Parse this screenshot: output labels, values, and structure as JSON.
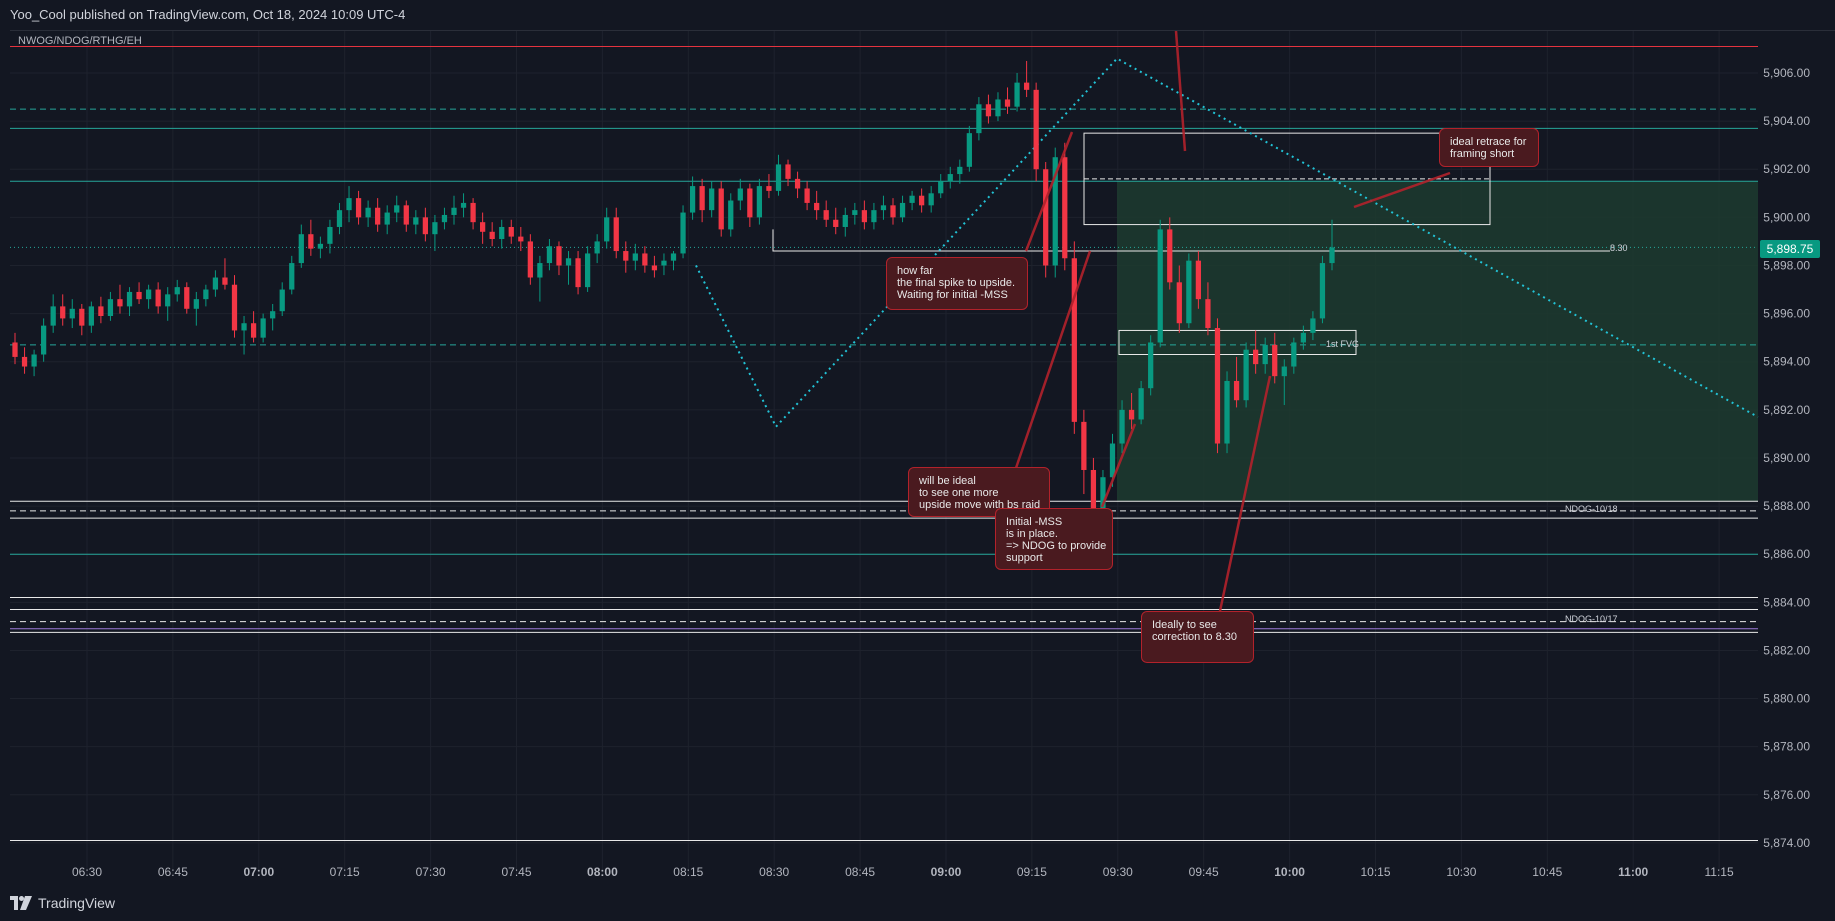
{
  "header": {
    "published": "Yoo_Cool published on TradingView.com, Oct 18, 2024 10:09 UTC-4"
  },
  "symbol": "NWOG/NDOG/RTHG/EH",
  "footer": {
    "brand": "TradingView"
  },
  "colors": {
    "bg": "#131722",
    "grid": "#1e222d",
    "up": "#089981",
    "down": "#f23645",
    "teal_line": "#26a69a",
    "cyan_dotted": "#22c3d6",
    "red_line": "#e5333f",
    "annotation_bg": "#4a1a1f",
    "annotation_border": "#b2222b",
    "zone_fill": "#1d3b2f",
    "white": "#e8e8e8",
    "purple": "#9c7ad8"
  },
  "chart_data": {
    "type": "candlestick",
    "ylim": [
      5873.5,
      5907.5
    ],
    "y_ticks": [
      "5,906.00",
      "5,904.00",
      "5,902.00",
      "5,900.00",
      "5,898.00",
      "5,896.00",
      "5,894.00",
      "5,892.00",
      "5,890.00",
      "5,888.00",
      "5,886.00",
      "5,884.00",
      "5,882.00",
      "5,880.00",
      "5,878.00",
      "5,876.00",
      "5,874.00"
    ],
    "y_tick_values": [
      5906,
      5904,
      5902,
      5900,
      5898,
      5896,
      5894,
      5892,
      5890,
      5888,
      5886,
      5884,
      5882,
      5880,
      5878,
      5876,
      5874
    ],
    "x_ticks": [
      "06:30",
      "06:45",
      "07:00",
      "07:15",
      "07:30",
      "07:45",
      "08:00",
      "08:15",
      "08:30",
      "08:45",
      "09:00",
      "09:15",
      "09:30",
      "09:45",
      "10:00",
      "10:15",
      "10:30",
      "10:45",
      "11:00",
      "11:15"
    ],
    "x_ticks_bold": [
      "07:00",
      "08:00",
      "09:00",
      "10:00",
      "11:00"
    ],
    "last_price": "5,898.75",
    "level_lines": [
      {
        "price": 5907.1,
        "color": "red",
        "style": "solid"
      },
      {
        "price": 5904.5,
        "color": "teal",
        "style": "dashed"
      },
      {
        "price": 5903.7,
        "color": "teal",
        "style": "solid"
      },
      {
        "price": 5901.5,
        "color": "teal",
        "style": "solid"
      },
      {
        "price": 5898.75,
        "color": "teal",
        "style": "dotted"
      },
      {
        "price": 5894.7,
        "color": "teal",
        "style": "dashed"
      },
      {
        "price": 5888.2,
        "color": "white",
        "style": "solid"
      },
      {
        "price": 5887.8,
        "color": "white",
        "style": "dashed"
      },
      {
        "price": 5887.5,
        "color": "white",
        "style": "solid"
      },
      {
        "price": 5886.0,
        "color": "teal",
        "style": "solid"
      },
      {
        "price": 5884.2,
        "color": "white",
        "style": "solid"
      },
      {
        "price": 5883.7,
        "color": "white",
        "style": "solid"
      },
      {
        "price": 5883.2,
        "color": "white",
        "style": "dashed"
      },
      {
        "price": 5882.9,
        "color": "purple",
        "style": "solid"
      },
      {
        "price": 5882.75,
        "color": "white",
        "style": "solid"
      },
      {
        "price": 5874.1,
        "color": "white",
        "style": "solid"
      }
    ],
    "level_labels": [
      {
        "text": "8.30",
        "price": 5898.7
      },
      {
        "text": "NDOG-10/18",
        "price": 5887.8
      },
      {
        "text": "NDOG-10/17",
        "price": 5883.2
      },
      {
        "text": "1st FVG",
        "price": 5894.75
      }
    ],
    "annotations": [
      {
        "text": "how far\nthe final spike to upside.\nWaiting for initial -MSS"
      },
      {
        "text": "will be ideal\nto see one more\nupside move with bs raid"
      },
      {
        "text": "Initial -MSS\nis in place.\n=> NDOG to provide\nsupport"
      },
      {
        "text": "Ideally to see\ncorrection to 8.30"
      },
      {
        "text": "ideal retrace for\nframing short"
      }
    ],
    "candles_ohlc": [
      [
        5894.8,
        5895.2,
        5893.9,
        5894.2
      ],
      [
        5894.2,
        5894.6,
        5893.5,
        5893.8
      ],
      [
        5893.8,
        5894.5,
        5893.4,
        5894.3
      ],
      [
        5894.3,
        5895.8,
        5894.0,
        5895.5
      ],
      [
        5895.5,
        5896.8,
        5895.2,
        5896.3
      ],
      [
        5896.3,
        5896.8,
        5895.5,
        5895.8
      ],
      [
        5895.8,
        5896.6,
        5895.4,
        5896.2
      ],
      [
        5896.2,
        5896.4,
        5895.1,
        5895.5
      ],
      [
        5895.5,
        5896.5,
        5895.2,
        5896.3
      ],
      [
        5896.3,
        5896.7,
        5895.6,
        5895.9
      ],
      [
        5895.9,
        5896.9,
        5895.7,
        5896.6
      ],
      [
        5896.6,
        5897.2,
        5896.0,
        5896.3
      ],
      [
        5896.3,
        5897.1,
        5895.9,
        5896.9
      ],
      [
        5896.9,
        5897.3,
        5896.4,
        5896.6
      ],
      [
        5896.6,
        5897.2,
        5896.2,
        5897.0
      ],
      [
        5897.0,
        5897.3,
        5896.0,
        5896.3
      ],
      [
        5896.3,
        5897.1,
        5895.7,
        5896.8
      ],
      [
        5896.8,
        5897.4,
        5896.5,
        5897.1
      ],
      [
        5897.1,
        5897.3,
        5896.0,
        5896.2
      ],
      [
        5896.2,
        5896.9,
        5895.5,
        5896.6
      ],
      [
        5896.6,
        5897.2,
        5896.3,
        5897.0
      ],
      [
        5897.0,
        5897.8,
        5896.7,
        5897.5
      ],
      [
        5897.5,
        5898.3,
        5897.0,
        5897.2
      ],
      [
        5897.2,
        5897.6,
        5895.0,
        5895.3
      ],
      [
        5895.3,
        5895.9,
        5894.3,
        5895.6
      ],
      [
        5895.6,
        5896.1,
        5894.8,
        5895.0
      ],
      [
        5895.0,
        5896.0,
        5894.8,
        5895.8
      ],
      [
        5895.8,
        5896.4,
        5895.3,
        5896.1
      ],
      [
        5896.1,
        5897.3,
        5895.9,
        5897.0
      ],
      [
        5897.0,
        5898.4,
        5896.8,
        5898.1
      ],
      [
        5898.1,
        5899.7,
        5897.9,
        5899.3
      ],
      [
        5899.3,
        5899.9,
        5898.4,
        5898.7
      ],
      [
        5898.7,
        5899.2,
        5898.3,
        5898.9
      ],
      [
        5898.9,
        5899.9,
        5898.5,
        5899.6
      ],
      [
        5899.6,
        5900.6,
        5899.3,
        5900.3
      ],
      [
        5900.3,
        5901.3,
        5899.8,
        5900.8
      ],
      [
        5900.8,
        5901.1,
        5899.7,
        5900.0
      ],
      [
        5900.0,
        5900.7,
        5899.6,
        5900.4
      ],
      [
        5900.4,
        5900.8,
        5899.4,
        5899.7
      ],
      [
        5899.7,
        5900.5,
        5899.3,
        5900.2
      ],
      [
        5900.2,
        5900.9,
        5899.8,
        5900.5
      ],
      [
        5900.5,
        5900.7,
        5899.4,
        5899.7
      ],
      [
        5899.7,
        5900.3,
        5899.3,
        5900.0
      ],
      [
        5900.0,
        5900.4,
        5899.0,
        5899.3
      ],
      [
        5899.3,
        5900.1,
        5898.6,
        5899.8
      ],
      [
        5899.8,
        5900.4,
        5899.5,
        5900.1
      ],
      [
        5900.1,
        5900.9,
        5899.7,
        5900.4
      ],
      [
        5900.4,
        5901.0,
        5900.0,
        5900.6
      ],
      [
        5900.6,
        5900.8,
        5899.5,
        5899.8
      ],
      [
        5899.8,
        5900.2,
        5898.9,
        5899.4
      ],
      [
        5899.4,
        5899.8,
        5898.8,
        5899.1
      ],
      [
        5899.1,
        5899.9,
        5898.7,
        5899.6
      ],
      [
        5899.6,
        5899.9,
        5898.9,
        5899.2
      ],
      [
        5899.2,
        5899.6,
        5898.6,
        5899.0
      ],
      [
        5899.0,
        5899.3,
        5897.2,
        5897.5
      ],
      [
        5897.5,
        5898.4,
        5896.5,
        5898.1
      ],
      [
        5898.1,
        5899.1,
        5897.8,
        5898.8
      ],
      [
        5898.8,
        5899.0,
        5897.6,
        5898.0
      ],
      [
        5898.0,
        5898.6,
        5897.2,
        5898.3
      ],
      [
        5898.3,
        5898.6,
        5896.8,
        5897.1
      ],
      [
        5897.1,
        5898.8,
        5896.9,
        5898.5
      ],
      [
        5898.5,
        5899.3,
        5898.1,
        5899.0
      ],
      [
        5899.0,
        5900.4,
        5898.7,
        5900.0
      ],
      [
        5900.0,
        5900.4,
        5898.3,
        5898.6
      ],
      [
        5898.6,
        5899.0,
        5897.7,
        5898.2
      ],
      [
        5898.2,
        5898.9,
        5897.8,
        5898.5
      ],
      [
        5898.5,
        5898.8,
        5897.7,
        5898.0
      ],
      [
        5898.0,
        5898.4,
        5897.5,
        5897.8
      ],
      [
        5898.0,
        5898.5,
        5897.6,
        5898.2
      ],
      [
        5898.2,
        5898.6,
        5897.8,
        5898.5
      ],
      [
        5898.5,
        5900.5,
        5898.3,
        5900.2
      ],
      [
        5900.2,
        5901.7,
        5899.9,
        5901.3
      ],
      [
        5901.3,
        5901.6,
        5899.8,
        5900.3
      ],
      [
        5900.3,
        5901.5,
        5900.0,
        5901.2
      ],
      [
        5901.2,
        5901.5,
        5899.2,
        5899.5
      ],
      [
        5899.5,
        5901.0,
        5899.2,
        5900.7
      ],
      [
        5900.7,
        5901.6,
        5900.3,
        5901.2
      ],
      [
        5901.2,
        5901.4,
        5899.6,
        5900.0
      ],
      [
        5900.0,
        5901.6,
        5899.7,
        5901.3
      ],
      [
        5901.3,
        5901.8,
        5900.8,
        5901.1
      ],
      [
        5901.1,
        5902.6,
        5900.9,
        5902.2
      ],
      [
        5902.2,
        5902.4,
        5901.3,
        5901.6
      ],
      [
        5901.6,
        5901.9,
        5900.8,
        5901.2
      ],
      [
        5901.2,
        5901.5,
        5900.3,
        5900.6
      ],
      [
        5900.6,
        5901.1,
        5899.9,
        5900.3
      ],
      [
        5900.3,
        5900.7,
        5899.6,
        5899.9
      ],
      [
        5899.9,
        5900.4,
        5899.3,
        5899.6
      ],
      [
        5899.6,
        5900.4,
        5899.2,
        5900.1
      ],
      [
        5900.1,
        5900.6,
        5899.7,
        5900.3
      ],
      [
        5900.3,
        5900.7,
        5899.5,
        5899.8
      ],
      [
        5899.8,
        5900.6,
        5899.5,
        5900.3
      ],
      [
        5900.3,
        5900.9,
        5899.9,
        5900.5
      ],
      [
        5900.5,
        5900.8,
        5899.7,
        5900.0
      ],
      [
        5900.0,
        5900.9,
        5899.8,
        5900.6
      ],
      [
        5900.6,
        5901.1,
        5900.3,
        5900.9
      ],
      [
        5900.9,
        5901.2,
        5900.2,
        5900.5
      ],
      [
        5900.5,
        5901.3,
        5900.2,
        5901.0
      ],
      [
        5901.0,
        5901.8,
        5900.8,
        5901.5
      ],
      [
        5901.5,
        5902.1,
        5901.2,
        5901.8
      ],
      [
        5901.8,
        5902.4,
        5901.4,
        5902.1
      ],
      [
        5902.1,
        5903.8,
        5901.9,
        5903.5
      ],
      [
        5903.5,
        5905.0,
        5903.2,
        5904.7
      ],
      [
        5904.7,
        5905.1,
        5903.9,
        5904.2
      ],
      [
        5904.2,
        5905.2,
        5904.0,
        5904.9
      ],
      [
        5904.9,
        5905.4,
        5904.3,
        5904.6
      ],
      [
        5904.6,
        5906.0,
        5904.4,
        5905.6
      ],
      [
        5905.6,
        5906.5,
        5905.0,
        5905.3
      ],
      [
        5905.3,
        5905.6,
        5901.5,
        5902.0
      ],
      [
        5902.0,
        5902.3,
        5897.5,
        5898.0
      ],
      [
        5898.0,
        5902.9,
        5897.5,
        5902.5
      ],
      [
        5902.5,
        5903.1,
        5897.8,
        5898.3
      ],
      [
        5898.3,
        5899.0,
        5891.0,
        5891.5
      ],
      [
        5891.5,
        5892.0,
        5888.5,
        5889.5
      ],
      [
        5889.5,
        5890.0,
        5886.5,
        5887.0
      ],
      [
        5887.0,
        5889.5,
        5886.8,
        5889.2
      ],
      [
        5889.2,
        5891.0,
        5888.8,
        5890.6
      ],
      [
        5890.6,
        5892.4,
        5890.2,
        5892.0
      ],
      [
        5892.0,
        5892.7,
        5891.2,
        5891.6
      ],
      [
        5891.6,
        5893.2,
        5891.4,
        5892.9
      ],
      [
        5892.9,
        5895.1,
        5892.6,
        5894.8
      ],
      [
        5894.8,
        5899.9,
        5894.6,
        5899.5
      ],
      [
        5899.5,
        5900.0,
        5897.0,
        5897.3
      ],
      [
        5897.3,
        5898.0,
        5895.2,
        5895.6
      ],
      [
        5895.6,
        5898.5,
        5895.4,
        5898.2
      ],
      [
        5898.2,
        5898.6,
        5896.2,
        5896.6
      ],
      [
        5896.6,
        5897.3,
        5895.1,
        5895.4
      ],
      [
        5895.4,
        5895.8,
        5890.2,
        5890.6
      ],
      [
        5890.6,
        5893.6,
        5890.2,
        5893.2
      ],
      [
        5893.2,
        5894.2,
        5892.1,
        5892.4
      ],
      [
        5892.4,
        5894.8,
        5892.1,
        5894.5
      ],
      [
        5894.5,
        5895.3,
        5893.5,
        5893.9
      ],
      [
        5893.9,
        5895.0,
        5893.5,
        5894.7
      ],
      [
        5894.7,
        5895.2,
        5893.1,
        5893.4
      ],
      [
        5893.4,
        5894.1,
        5892.2,
        5893.8
      ],
      [
        5893.8,
        5895.0,
        5893.5,
        5894.8
      ],
      [
        5894.8,
        5895.5,
        5894.5,
        5895.2
      ],
      [
        5895.2,
        5896.1,
        5894.9,
        5895.8
      ],
      [
        5895.8,
        5898.4,
        5895.6,
        5898.1
      ],
      [
        5898.1,
        5899.9,
        5897.8,
        5898.75
      ]
    ]
  }
}
